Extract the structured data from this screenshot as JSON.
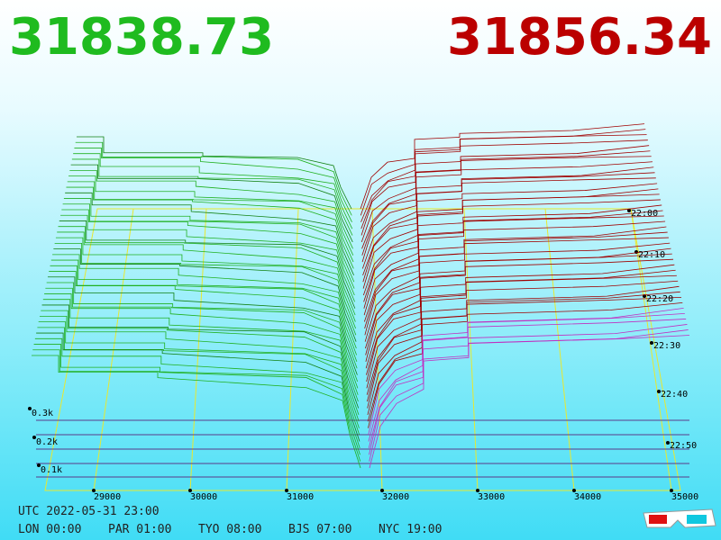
{
  "header": {
    "bid_price": "31838.73",
    "ask_price": "31856.34"
  },
  "price_axis": {
    "labels": [
      "29000",
      "30000",
      "31000",
      "32000",
      "33000",
      "34000",
      "35000"
    ]
  },
  "time_axis": {
    "labels": [
      "22:00",
      "22:10",
      "22:20",
      "22:30",
      "22:40",
      "22:50"
    ]
  },
  "depth_axis": {
    "labels": [
      "0.3k",
      "0.2k",
      "0.1k"
    ]
  },
  "footer": {
    "utc": "UTC 2022-05-31 23:00",
    "zones": [
      "LON 00:00",
      "PAR 01:00",
      "TYO 08:00",
      "BJS 07:00",
      "NYC 19:00"
    ]
  }
}
